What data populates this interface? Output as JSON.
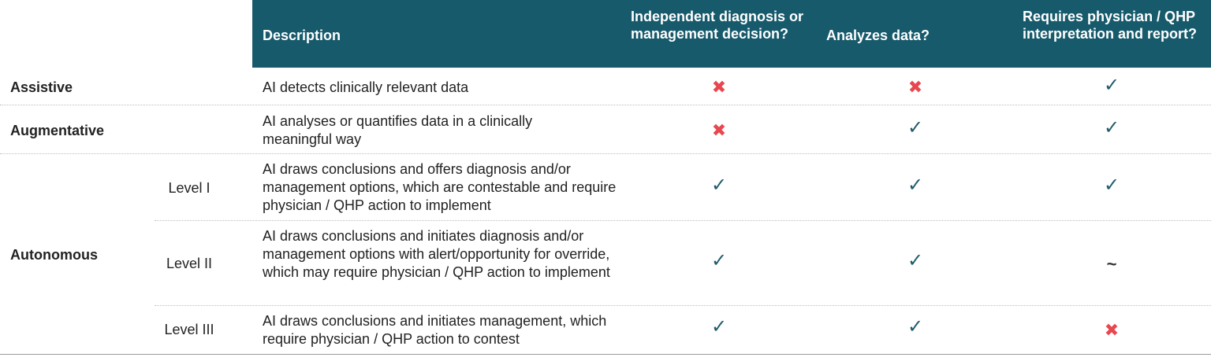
{
  "header": {
    "description": "Description",
    "independent": "Independent diagnosis or management decision?",
    "analyzes": "Analyzes data?",
    "requires": "Requires physician / QHP interpretation and report?"
  },
  "rows": [
    {
      "category": "Assistive",
      "level": "",
      "description": "AI detects clinically relevant data",
      "marks": [
        "cross",
        "cross",
        "check"
      ]
    },
    {
      "category": "Augmentative",
      "level": "",
      "description": "AI analyses or quantifies data in a clinically meaningful way",
      "marks": [
        "cross",
        "check",
        "check"
      ]
    },
    {
      "category": "",
      "level": "Level I",
      "description": "AI draws conclusions and offers diagnosis and/or management options, which are contestable and require physician / QHP action to implement",
      "marks": [
        "check",
        "check",
        "check"
      ]
    },
    {
      "category": "Autonomous",
      "level": "Level II",
      "description": "AI draws conclusions and initiates diagnosis and/or management options with alert/opportunity for override, which may require physician / QHP action to implement",
      "marks": [
        "check",
        "check",
        "tilde"
      ]
    },
    {
      "category": "",
      "level": "Level III",
      "description": "AI draws conclusions and initiates management, which require physician / QHP action to contest",
      "marks": [
        "check",
        "check",
        "cross"
      ]
    }
  ],
  "symbols": {
    "check": "✓",
    "cross": "✖",
    "tilde": "~"
  },
  "colors": {
    "header_bg": "#175a6c",
    "check": "#1f5c6a",
    "cross": "#e8474f"
  }
}
